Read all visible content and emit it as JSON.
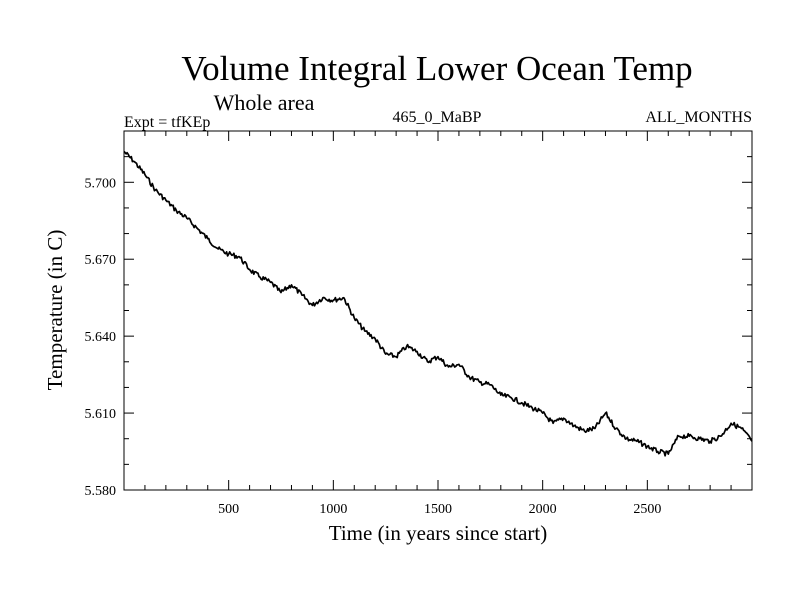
{
  "chart_data": {
    "type": "line",
    "title": "Volume Integral Lower Ocean Temp",
    "subtitle": "Whole area",
    "expt_label": "Expt = tfKEp",
    "run_label": "465_0_MaBP",
    "months_label": "ALL_MONTHS",
    "xlabel": "Time (in years since start)",
    "ylabel": "Temperature (in C)",
    "xlim": [
      0,
      3000
    ],
    "ylim": [
      5.58,
      5.72
    ],
    "x_ticks": [
      500,
      1000,
      1500,
      2000,
      2500
    ],
    "y_ticks": [
      "5.580",
      "5.610",
      "5.640",
      "5.670",
      "5.700"
    ],
    "grid": false,
    "series": [
      {
        "color": "#000000",
        "x": [
          0,
          50,
          100,
          150,
          200,
          250,
          300,
          350,
          400,
          450,
          500,
          550,
          600,
          650,
          700,
          750,
          800,
          850,
          900,
          950,
          1000,
          1050,
          1100,
          1150,
          1200,
          1250,
          1300,
          1350,
          1400,
          1450,
          1500,
          1550,
          1600,
          1650,
          1700,
          1750,
          1800,
          1850,
          1900,
          1950,
          2000,
          2050,
          2100,
          2150,
          2200,
          2250,
          2300,
          2350,
          2400,
          2450,
          2500,
          2550,
          2600,
          2650,
          2700,
          2750,
          2800,
          2850,
          2900,
          2950,
          3000
        ],
        "y": [
          5.712,
          5.708,
          5.703,
          5.697,
          5.693,
          5.689,
          5.686,
          5.682,
          5.678,
          5.674,
          5.672,
          5.671,
          5.666,
          5.663,
          5.661,
          5.657,
          5.66,
          5.656,
          5.652,
          5.655,
          5.654,
          5.655,
          5.647,
          5.642,
          5.639,
          5.633,
          5.632,
          5.636,
          5.634,
          5.63,
          5.632,
          5.628,
          5.629,
          5.624,
          5.622,
          5.621,
          5.617,
          5.616,
          5.614,
          5.612,
          5.61,
          5.606,
          5.608,
          5.605,
          5.603,
          5.604,
          5.61,
          5.604,
          5.6,
          5.599,
          5.597,
          5.595,
          5.594,
          5.601,
          5.601,
          5.6,
          5.599,
          5.601,
          5.606,
          5.604,
          5.599
        ]
      }
    ]
  }
}
